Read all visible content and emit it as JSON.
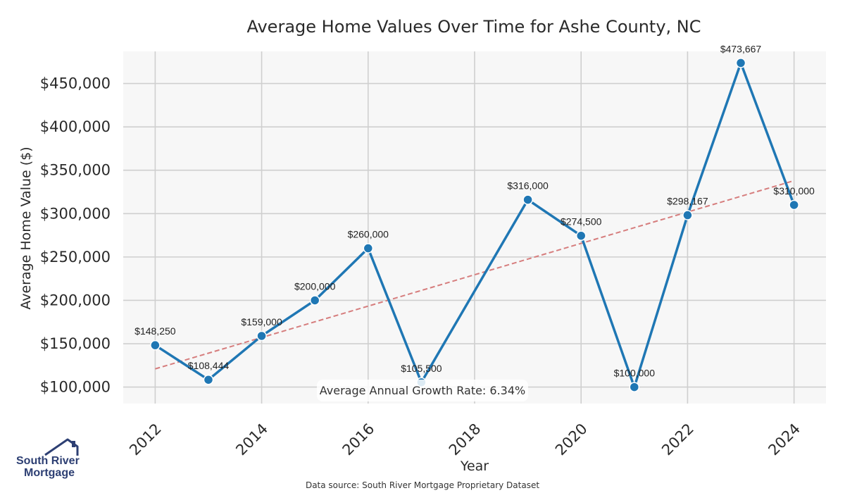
{
  "chart_data": {
    "type": "line",
    "title": "Average Home Values Over Time for Ashe County, NC",
    "xlabel": "Year",
    "ylabel": "Average Home Value ($)",
    "x": [
      2012,
      2013,
      2014,
      2015,
      2016,
      2017,
      2018,
      2019,
      2020,
      2021,
      2022,
      2023,
      2024
    ],
    "series": [
      {
        "values": [
          148250,
          108444,
          159000,
          200000,
          260000,
          105500,
          null,
          316000,
          274500,
          100000,
          298167,
          473667,
          310000
        ],
        "labels": [
          "$148,250",
          "$108,444",
          "$159,000",
          "$200,000",
          "$260,000",
          "$105,500",
          "",
          "$316,000",
          "$274,500",
          "$100,000",
          "$298,167",
          "$473,667",
          "$310,000"
        ],
        "color": "#1f77b4"
      }
    ],
    "trendline": {
      "start": [
        2012,
        121000
      ],
      "end": [
        2024,
        338000
      ],
      "color": "#d67d7d",
      "style": "dashed"
    },
    "x_ticks": [
      2012,
      2014,
      2016,
      2018,
      2020,
      2022,
      2024
    ],
    "x_tick_labels": [
      "2012",
      "2014",
      "2016",
      "2018",
      "2020",
      "2022",
      "2024"
    ],
    "y_ticks": [
      100000,
      150000,
      200000,
      250000,
      300000,
      350000,
      400000,
      450000
    ],
    "y_tick_labels": [
      "$100,000",
      "$150,000",
      "$200,000",
      "$250,000",
      "$300,000",
      "$350,000",
      "$400,000",
      "$450,000"
    ],
    "xlim": [
      2011.4,
      2024.6
    ],
    "ylim": [
      81000,
      487000
    ],
    "grid": true,
    "plot_background": "#f7f7f7",
    "annotation": "Average Annual Growth Rate: 6.34%"
  },
  "footer": {
    "source": "Data source: South River Mortgage Proprietary Dataset",
    "logo_line1": "South River",
    "logo_line2": "Mortgage"
  }
}
